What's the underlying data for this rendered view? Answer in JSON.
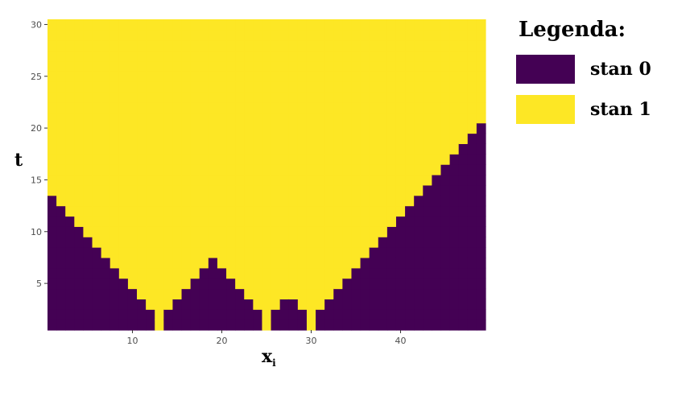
{
  "chart_data": {
    "type": "heatmap",
    "title": "",
    "xlabel_main": "x",
    "xlabel_sub": "i",
    "ylabel": "t",
    "xlim": [
      0.5,
      49.5
    ],
    "ylim": [
      0.5,
      30.5
    ],
    "x_ticks": [
      10,
      20,
      30,
      40
    ],
    "y_ticks": [
      5,
      10,
      15,
      20,
      25,
      30
    ],
    "grid": false,
    "legend_position": "right",
    "legend_title": "Legenda:",
    "states": [
      {
        "label": "stan 0",
        "color": "#440154"
      },
      {
        "label": "stan 1",
        "color": "#FDE725"
      }
    ],
    "note_values": "For each column x = 1..49, cells with t <= stan0_max_t are 'stan 0'; cells above are 'stan 1'. A value of 0 means the whole column is 'stan 1'.",
    "x": [
      1,
      2,
      3,
      4,
      5,
      6,
      7,
      8,
      9,
      10,
      11,
      12,
      13,
      14,
      15,
      16,
      17,
      18,
      19,
      20,
      21,
      22,
      23,
      24,
      25,
      26,
      27,
      28,
      29,
      30,
      31,
      32,
      33,
      34,
      35,
      36,
      37,
      38,
      39,
      40,
      41,
      42,
      43,
      44,
      45,
      46,
      47,
      48,
      49
    ],
    "stan0_max_t": [
      13,
      12,
      11,
      10,
      9,
      8,
      7,
      6,
      5,
      4,
      3,
      2,
      0,
      2,
      3,
      4,
      5,
      6,
      7,
      6,
      5,
      4,
      3,
      2,
      0,
      2,
      3,
      3,
      2,
      0,
      2,
      3,
      4,
      5,
      6,
      7,
      8,
      9,
      10,
      11,
      12,
      13,
      14,
      15,
      16,
      17,
      18,
      19,
      20
    ]
  }
}
